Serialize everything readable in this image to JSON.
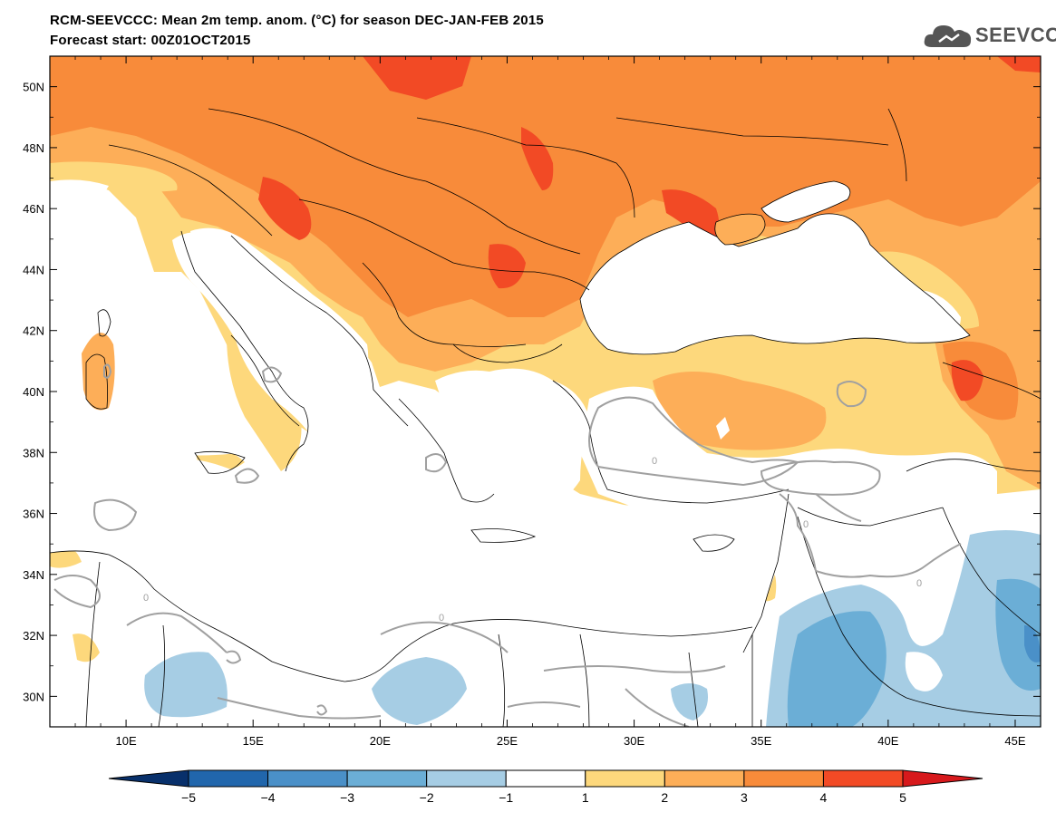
{
  "map": {
    "title_line1": "RCM-SEEVCCC: Mean 2m temp. anom. (°C) for season DEC-JAN-FEB 2015",
    "title_line2": "Forecast start: 00Z01OCT2015",
    "logo_text": "SEEVCCC",
    "extent": {
      "lon": [
        7,
        46
      ],
      "lat": [
        29,
        51
      ]
    },
    "lon_ticks": [
      "10E",
      "15E",
      "20E",
      "25E",
      "30E",
      "35E",
      "40E",
      "45E"
    ],
    "lat_ticks": [
      "50N",
      "48N",
      "46N",
      "44N",
      "42N",
      "40N",
      "38N",
      "36N",
      "34N",
      "32N",
      "30N"
    ],
    "contour_labels": [
      "0",
      "0",
      "0",
      "0",
      "0"
    ],
    "colorbar": {
      "labels": [
        "−5",
        "−4",
        "−3",
        "−2",
        "−1",
        "1",
        "2",
        "3",
        "4",
        "5"
      ],
      "colors": [
        "#08306b",
        "#2166ac",
        "#4a90c8",
        "#6baed6",
        "#a6cde4",
        "#ffffff",
        "#fdd87c",
        "#fdae58",
        "#f88b3a",
        "#f24a25",
        "#d7191c"
      ]
    },
    "colors": {
      "land_anom_1_2": "#fdd87c",
      "land_anom_2_3": "#fdae58",
      "land_anom_3_4": "#f88b3a",
      "land_anom_4_5": "#f24a25",
      "land_anom_gt5": "#d7191c",
      "land_anom_m1_m2": "#a6cde4",
      "land_anom_m2_m3": "#6baed6",
      "zero_contour": "#a0a0a0"
    }
  }
}
